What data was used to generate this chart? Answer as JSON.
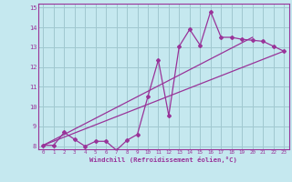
{
  "xlabel": "Windchill (Refroidissement éolien,°C)",
  "bg_color": "#c5e8ef",
  "grid_color": "#a0c8d0",
  "line_color": "#993399",
  "spine_color": "#993399",
  "xlim": [
    -0.5,
    23.5
  ],
  "ylim": [
    7.85,
    15.2
  ],
  "xticks": [
    0,
    1,
    2,
    3,
    4,
    5,
    6,
    7,
    8,
    9,
    10,
    11,
    12,
    13,
    14,
    15,
    16,
    17,
    18,
    19,
    20,
    21,
    22,
    23
  ],
  "yticks": [
    8,
    9,
    10,
    11,
    12,
    13,
    14,
    15
  ],
  "line1_x": [
    0,
    1,
    2,
    3,
    4,
    5,
    6,
    7,
    8,
    9,
    10,
    11,
    12,
    13,
    14,
    15,
    16,
    17,
    18,
    19,
    20,
    21,
    22,
    23
  ],
  "line1_y": [
    8.05,
    8.05,
    8.7,
    8.35,
    8.0,
    8.25,
    8.25,
    7.8,
    8.3,
    8.6,
    10.5,
    12.35,
    9.55,
    13.05,
    13.9,
    13.1,
    14.8,
    13.5,
    13.5,
    13.4,
    13.35,
    13.3,
    13.05,
    12.8
  ],
  "line2_x": [
    0,
    23
  ],
  "line2_y": [
    8.05,
    12.8
  ],
  "line3_x": [
    0,
    20
  ],
  "line3_y": [
    8.05,
    13.5
  ]
}
